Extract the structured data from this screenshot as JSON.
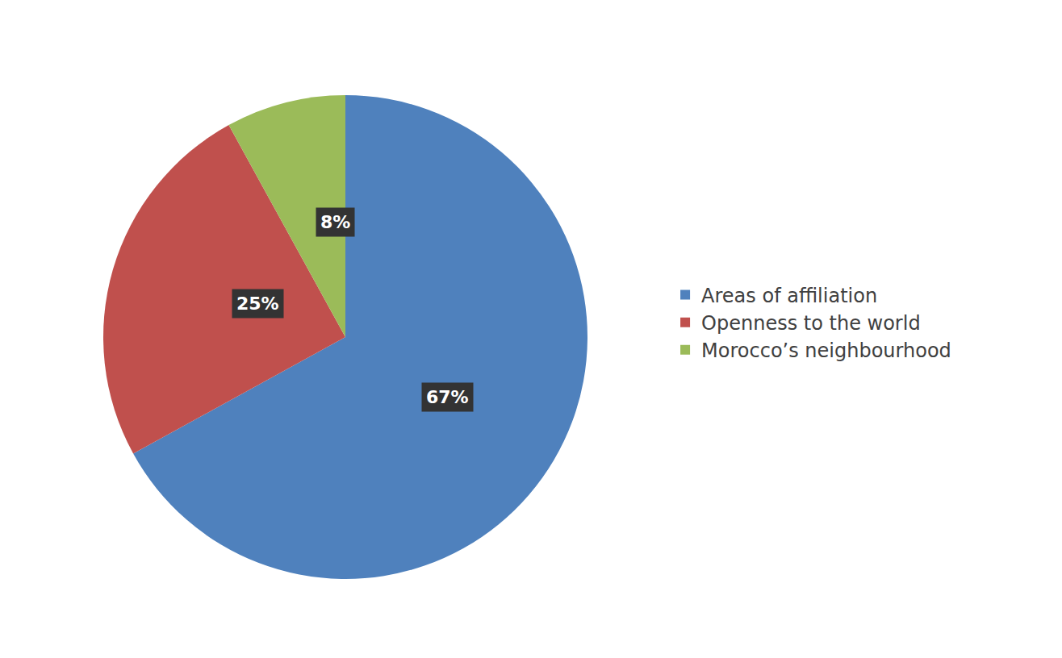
{
  "chart_data": {
    "type": "pie",
    "categories": [
      "Areas of affiliation",
      "Openness to the world",
      "Morocco’s neighbourhood"
    ],
    "values": [
      67,
      25,
      8
    ],
    "value_labels": [
      "67%",
      "25%",
      "8%"
    ],
    "colors": [
      "#4f81bd",
      "#c0504d",
      "#9bbb59"
    ],
    "data_labels": true,
    "legend": "right"
  }
}
